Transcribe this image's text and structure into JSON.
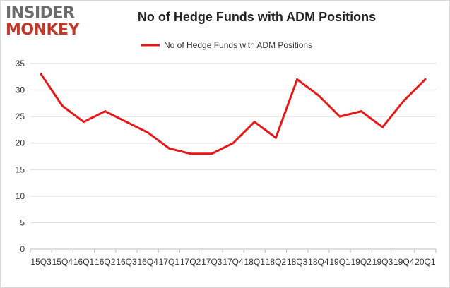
{
  "logo": {
    "line1": "INSIDER",
    "line2": "MONKEY"
  },
  "colors": {
    "series": "#e81818",
    "grid": "#d9d9d9",
    "axis": "#bfbfbf",
    "logo_gray": "#6b6b6b",
    "logo_red": "#c0392b"
  },
  "chart_data": {
    "type": "line",
    "title": "No of Hedge Funds with ADM Positions",
    "xlabel": "",
    "ylabel": "",
    "ylim": [
      0,
      35
    ],
    "yticks": [
      0,
      5,
      10,
      15,
      20,
      25,
      30,
      35
    ],
    "grid": true,
    "legend_position": "top-center",
    "categories": [
      "15Q3",
      "15Q4",
      "16Q1",
      "16Q2",
      "16Q3",
      "16Q4",
      "17Q1",
      "17Q2",
      "17Q3",
      "17Q4",
      "18Q1",
      "18Q2",
      "18Q3",
      "18Q4",
      "19Q1",
      "19Q2",
      "19Q3",
      "19Q4",
      "20Q1"
    ],
    "series": [
      {
        "name": "No of Hedge Funds with ADM Positions",
        "values": [
          33,
          27,
          24,
          26,
          24,
          22,
          19,
          18,
          18,
          20,
          24,
          21,
          32,
          29,
          25,
          26,
          23,
          28,
          32
        ]
      }
    ]
  }
}
